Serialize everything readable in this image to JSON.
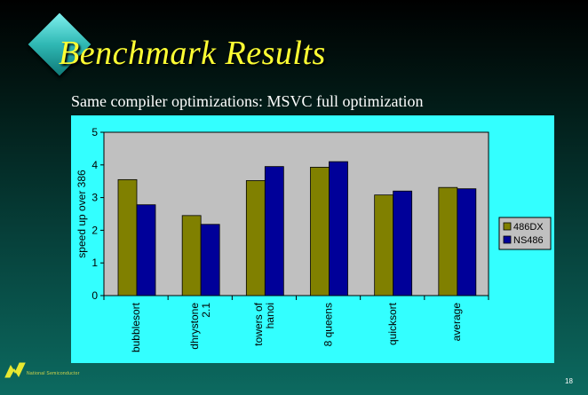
{
  "slide": {
    "title": "Benchmark Results",
    "subtitle": "Same compiler optimizations: MSVC full optimization",
    "footer": "National Semiconductor",
    "page_number": "18"
  },
  "colors": {
    "series_486dx": "#808000",
    "series_ns486": "#000099",
    "plot_bg": "#c0c0c0",
    "panel_bg": "#33ffff",
    "title": "#ffff33"
  },
  "chart_data": {
    "type": "bar",
    "title": "",
    "xlabel": "",
    "ylabel": "speed up over 386",
    "ylim": [
      0,
      5
    ],
    "yticks": [
      "0",
      "1",
      "2",
      "3",
      "4",
      "5"
    ],
    "grid": false,
    "legend_position": "right",
    "categories": [
      [
        "bubblesort"
      ],
      [
        "dhrystone",
        "2.1"
      ],
      [
        "towers of",
        "hanoi"
      ],
      [
        "8 queens"
      ],
      [
        "quicksort"
      ],
      [
        "average"
      ]
    ],
    "series": [
      {
        "name": "486DX",
        "values": [
          3.55,
          2.45,
          3.52,
          3.93,
          3.08,
          3.31
        ]
      },
      {
        "name": "NS486",
        "values": [
          2.78,
          2.18,
          3.95,
          4.1,
          3.2,
          3.27
        ]
      }
    ]
  }
}
